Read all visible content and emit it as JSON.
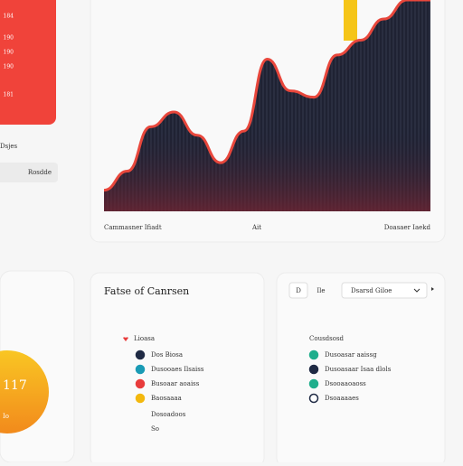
{
  "sidebar": {
    "numbers": [
      "184",
      "190",
      "190",
      "190",
      "181"
    ],
    "label": "Dsjes",
    "button": "Rosdde"
  },
  "area_chart": {
    "type": "area",
    "values": [
      10,
      19,
      40,
      47,
      36,
      23,
      38,
      72,
      57,
      54,
      74,
      81,
      91,
      100,
      100
    ],
    "ylim": [
      0,
      100
    ],
    "line_color": "#e8473c",
    "fill_color": "#1f2233",
    "highlight_color": "#f5c518",
    "x_labels": [
      "Cammasner Ifiadt",
      "Ait",
      "Doasaer Iaekd"
    ]
  },
  "badge": {
    "value": "117",
    "sub": "Io"
  },
  "panel": {
    "title": "Fatse of Canrsen",
    "controls": [
      "D",
      "Ile"
    ],
    "dropdown": "Dsarsd Giloe"
  },
  "legend_left": {
    "header": "Lioasa",
    "items": [
      {
        "label": "Dos Biosa",
        "color": "#1f2a44"
      },
      {
        "label": "Dusooaes Ilsaiss",
        "color": "#1a9bb5"
      },
      {
        "label": "Busoaar aoaiss",
        "color": "#e83c3c"
      },
      {
        "label": "Baosaaaa",
        "color": "#f3b80e"
      }
    ],
    "extra": [
      "Dosoadoos",
      "So"
    ]
  },
  "legend_right": {
    "header": "Cousdsosd",
    "items": [
      {
        "label": "Dusoasar aaissg",
        "color": "#1fae8c"
      },
      {
        "label": "Dusoasaar Isaa dlols",
        "color": "#1f2a44"
      },
      {
        "label": "Dsooaaoaoss",
        "color": "#1fae8c"
      },
      {
        "label": "Dsoaaaaes",
        "color": "none"
      }
    ]
  }
}
